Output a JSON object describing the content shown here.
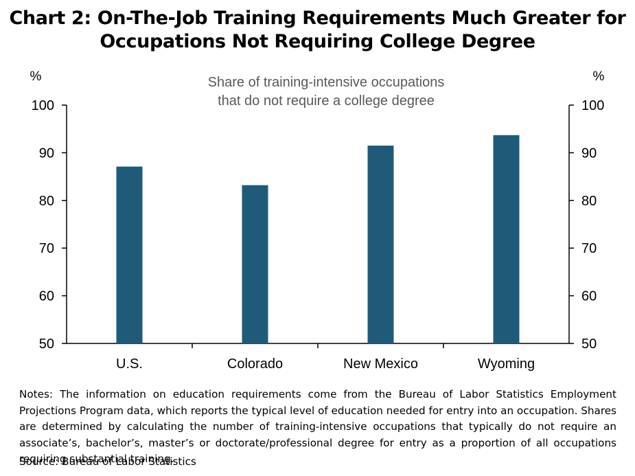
{
  "title": {
    "line1": "Chart 2: On-The-Job Training Requirements Much Greater for",
    "line2": "Occupations Not Requiring College Degree"
  },
  "colors": {
    "bar": "#1f5b78",
    "axis": "#000000",
    "annotation": "#595959"
  },
  "chart_data": {
    "type": "bar",
    "title": "Chart 2: On-The-Job Training Requirements Much Greater for Occupations Not Requiring College Degree",
    "annotation": [
      "Share of training-intensive occupations",
      "that do not require a college degree"
    ],
    "categories": [
      "U.S.",
      "Colorado",
      "New Mexico",
      "Wyoming"
    ],
    "values": [
      87.1,
      83.2,
      91.5,
      93.7
    ],
    "ylabel_left": "%",
    "ylabel_right": "%",
    "ylim": [
      50,
      100
    ],
    "yticks": [
      50,
      60,
      70,
      80,
      90,
      100
    ],
    "grid": false,
    "legend": "none"
  },
  "notes": "Notes: The information on education requirements come from the Bureau of Labor Statistics Employment Projections Program data, which reports the typical level of education needed for entry into an occupation. Shares are determined by calculating the number of training-intensive occupations that typically do not require an associate’s, bachelor’s, master’s or doctorate/professional degree for entry as a proportion of all occupations requiring substantial training.",
  "source": "Source: Bureau of Labor Statistics"
}
